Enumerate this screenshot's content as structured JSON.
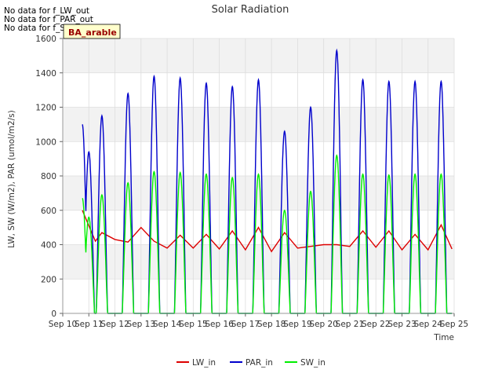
{
  "notices": [
    "No data for f_LW_out",
    "No data for f_PAR_out",
    "No data for f_SW_out"
  ],
  "site_badge": "BA_arable",
  "chart_data": {
    "type": "line",
    "title": "Solar Radiation",
    "xlabel": "Time",
    "ylabel": "LW, SW (W/m2), PAR (umol/m2/s)",
    "xlim": [
      "2000-09-10",
      "2000-09-25"
    ],
    "ylim": [
      0,
      1600
    ],
    "x_ticks": [
      "Sep 10",
      "Sep 11",
      "Sep 12",
      "Sep 13",
      "Sep 14",
      "Sep 15",
      "Sep 16",
      "Sep 17",
      "Sep 18",
      "Sep 19",
      "Sep 20",
      "Sep 21",
      "Sep 22",
      "Sep 23",
      "Sep 24",
      "Sep 25"
    ],
    "y_ticks": [
      0,
      200,
      400,
      600,
      800,
      1000,
      1200,
      1400,
      1600
    ],
    "grid": true,
    "legend_position": "bottom",
    "series": [
      {
        "name": "LW_in",
        "color": "#dd0000",
        "x": [
          "2000-09-10 18:00",
          "2000-09-11 06:00",
          "2000-09-11 12:00",
          "2000-09-12 00:00",
          "2000-09-12 12:00",
          "2000-09-13 00:00",
          "2000-09-13 12:00",
          "2000-09-14 00:00",
          "2000-09-14 12:00",
          "2000-09-15 00:00",
          "2000-09-15 12:00",
          "2000-09-16 00:00",
          "2000-09-16 12:00",
          "2000-09-17 00:00",
          "2000-09-17 12:00",
          "2000-09-18 00:00",
          "2000-09-18 12:00",
          "2000-09-19 00:00",
          "2000-09-19 12:00",
          "2000-09-20 00:00",
          "2000-09-20 12:00",
          "2000-09-21 00:00",
          "2000-09-21 12:00",
          "2000-09-22 00:00",
          "2000-09-22 12:00",
          "2000-09-23 00:00",
          "2000-09-23 12:00",
          "2000-09-24 00:00",
          "2000-09-24 12:00",
          "2000-09-24 22:00"
        ],
        "values": [
          600,
          420,
          470,
          430,
          415,
          500,
          420,
          380,
          455,
          380,
          460,
          375,
          480,
          370,
          500,
          360,
          470,
          380,
          390,
          400,
          400,
          390,
          480,
          385,
          480,
          370,
          460,
          370,
          515,
          375
        ]
      },
      {
        "name": "PAR_in",
        "color": "#0000cc",
        "x": [
          "2000-09-10 18:00",
          "2000-09-11 00:00",
          "2000-09-11 12:00",
          "2000-09-12 12:00",
          "2000-09-13 12:00",
          "2000-09-14 12:00",
          "2000-09-15 12:00",
          "2000-09-16 12:00",
          "2000-09-17 12:00",
          "2000-09-18 12:00",
          "2000-09-19 12:00",
          "2000-09-20 12:00",
          "2000-09-21 12:00",
          "2000-09-22 12:00",
          "2000-09-23 12:00",
          "2000-09-24 12:00"
        ],
        "values": [
          1100,
          940,
          1150,
          1280,
          1380,
          1370,
          1340,
          1320,
          1360,
          1060,
          1200,
          1530,
          1360,
          1350,
          1350,
          1350
        ]
      },
      {
        "name": "SW_in",
        "color": "#00ee00",
        "x": [
          "2000-09-10 18:00",
          "2000-09-11 00:00",
          "2000-09-11 12:00",
          "2000-09-12 12:00",
          "2000-09-13 12:00",
          "2000-09-14 12:00",
          "2000-09-15 12:00",
          "2000-09-16 12:00",
          "2000-09-17 12:00",
          "2000-09-18 12:00",
          "2000-09-19 12:00",
          "2000-09-20 12:00",
          "2000-09-21 12:00",
          "2000-09-22 12:00",
          "2000-09-23 12:00",
          "2000-09-24 12:00"
        ],
        "values": [
          670,
          560,
          690,
          760,
          825,
          820,
          810,
          790,
          810,
          600,
          710,
          920,
          810,
          805,
          810,
          810
        ]
      }
    ]
  }
}
